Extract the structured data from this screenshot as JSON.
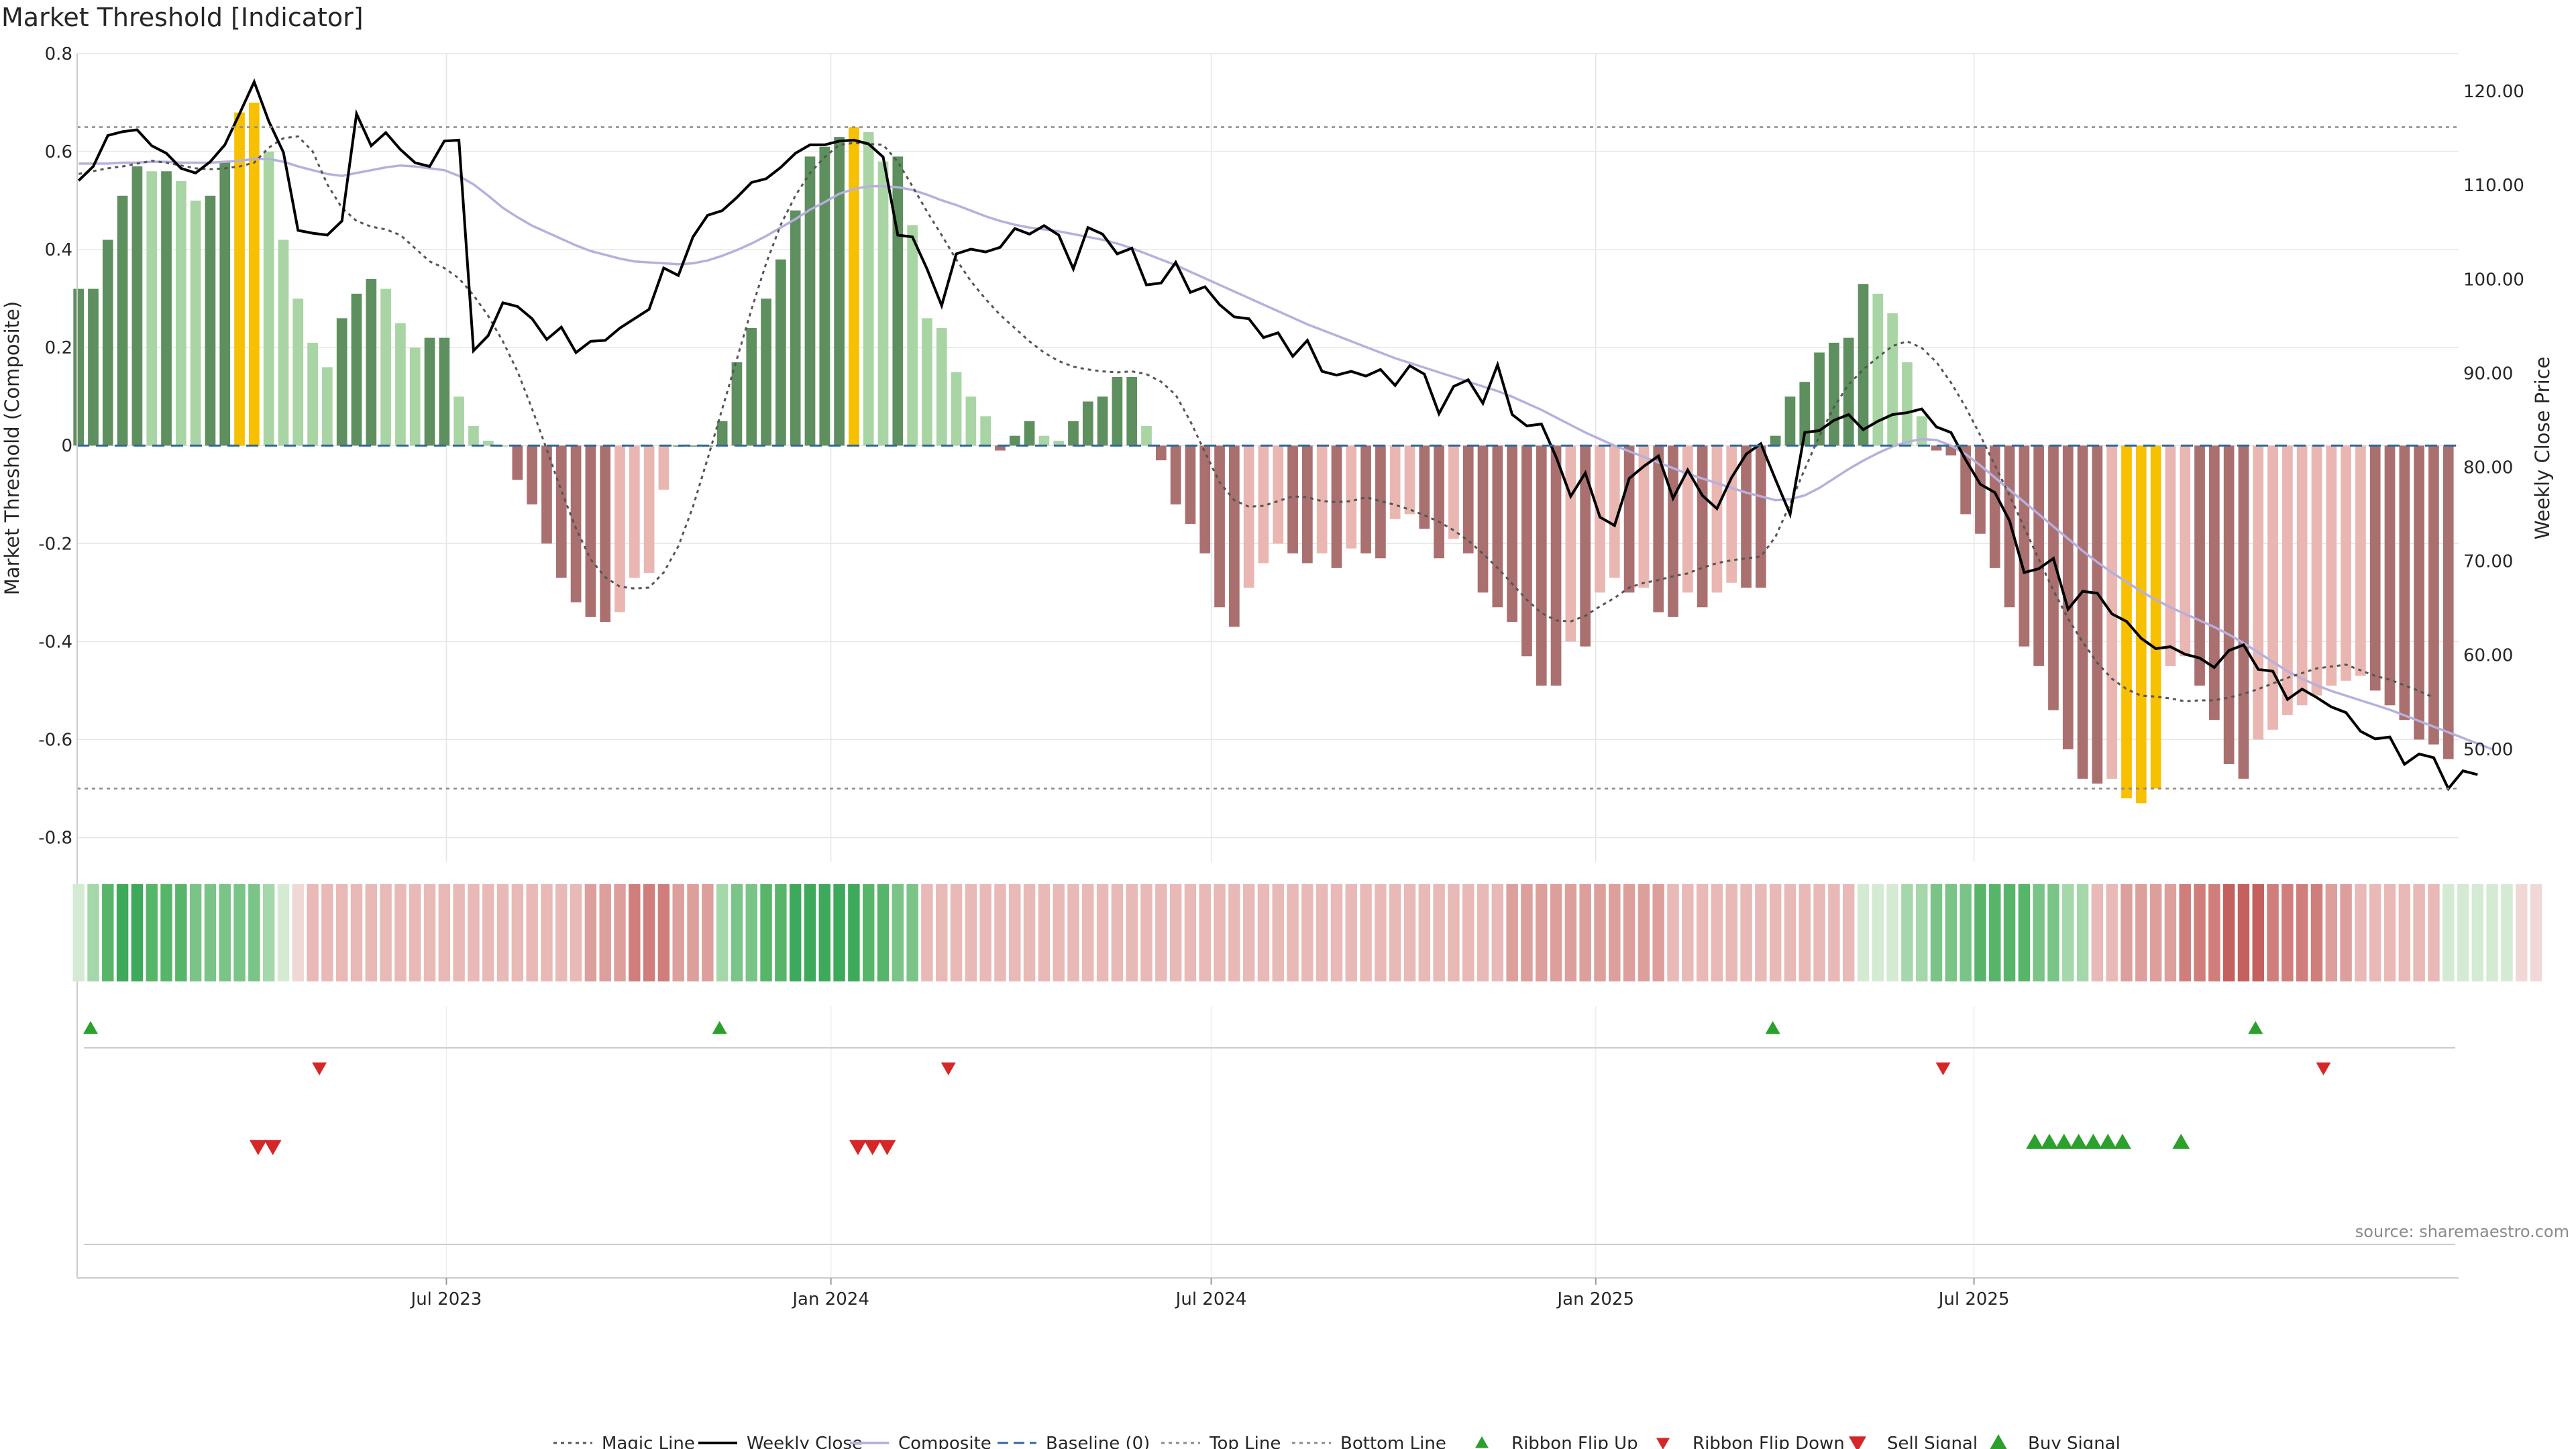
{
  "chart_data": {
    "type": "bar",
    "title": "Market Threshold [Indicator]",
    "ylabel": "Market Threshold (Composite)",
    "y2label": "Weekly Close Price",
    "ylim": [
      -0.85,
      0.8
    ],
    "y2lim": [
      38,
      124
    ],
    "yticks": [
      0.8,
      0.6,
      0.4,
      0.2,
      0,
      -0.2,
      -0.4,
      -0.6,
      -0.8
    ],
    "y2ticks": [
      120.0,
      110.0,
      100.0,
      90.0,
      80.0,
      70.0,
      60.0,
      50.0
    ],
    "x_start": "2023-01-06",
    "x_step_days": 7,
    "x_ticks": [
      {
        "label": "Jul 2023",
        "date": "2023-07-01"
      },
      {
        "label": "Jan 2024",
        "date": "2024-01-01"
      },
      {
        "label": "Jul 2024",
        "date": "2024-07-01"
      },
      {
        "label": "Jan 2025",
        "date": "2025-01-01"
      },
      {
        "label": "Jul 2025",
        "date": "2025-07-01"
      }
    ],
    "top_line": 0.65,
    "bottom_line": -0.7,
    "composite": [
      0.32,
      0.32,
      0.42,
      0.51,
      0.57,
      0.56,
      0.56,
      0.54,
      0.5,
      0.51,
      0.58,
      0.68,
      0.7,
      0.6,
      0.42,
      0.3,
      0.21,
      0.16,
      0.26,
      0.31,
      0.34,
      0.32,
      0.25,
      0.2,
      0.22,
      0.22,
      0.1,
      0.04,
      0.01,
      0.0,
      -0.07,
      -0.12,
      -0.2,
      -0.27,
      -0.32,
      -0.35,
      -0.36,
      -0.34,
      -0.27,
      -0.26,
      -0.09,
      0.0,
      0.0,
      0.0,
      0.05,
      0.17,
      0.24,
      0.3,
      0.38,
      0.48,
      0.59,
      0.61,
      0.63,
      0.65,
      0.64,
      0.58,
      0.59,
      0.45,
      0.26,
      0.24,
      0.15,
      0.1,
      0.06,
      -0.01,
      0.02,
      0.05,
      0.02,
      0.01,
      0.05,
      0.09,
      0.1,
      0.14,
      0.14,
      0.04,
      -0.03,
      -0.12,
      -0.16,
      -0.22,
      -0.33,
      -0.37,
      -0.29,
      -0.24,
      -0.2,
      -0.22,
      -0.24,
      -0.22,
      -0.25,
      -0.21,
      -0.22,
      -0.23,
      -0.15,
      -0.14,
      -0.17,
      -0.23,
      -0.19,
      -0.22,
      -0.3,
      -0.33,
      -0.36,
      -0.43,
      -0.49,
      -0.49,
      -0.4,
      -0.41,
      -0.3,
      -0.27,
      -0.3,
      -0.29,
      -0.34,
      -0.35,
      -0.3,
      -0.33,
      -0.3,
      -0.28,
      -0.29,
      -0.29,
      0.02,
      0.1,
      0.13,
      0.19,
      0.21,
      0.22,
      0.33,
      0.31,
      0.27,
      0.17,
      0.06,
      -0.01,
      -0.02,
      -0.14,
      -0.18,
      -0.25,
      -0.33,
      -0.41,
      -0.45,
      -0.54,
      -0.62,
      -0.68,
      -0.69,
      -0.68,
      -0.72,
      -0.73,
      -0.7,
      -0.45,
      -0.43,
      -0.49,
      -0.56,
      -0.65,
      -0.68,
      -0.6,
      -0.58,
      -0.55,
      -0.53,
      -0.51,
      -0.49,
      -0.48,
      -0.47,
      -0.5,
      -0.53,
      -0.56,
      -0.6,
      -0.61,
      -0.64
    ],
    "weekly_close": [
      110.5,
      112,
      115.3,
      115.7,
      115.9,
      114.2,
      113.4,
      111.8,
      111.3,
      112.5,
      114.3,
      117.6,
      121,
      116.8,
      113.5,
      105.2,
      104.9,
      104.7,
      106.2,
      117.6,
      114.2,
      115.6,
      113.8,
      112.4,
      112,
      114.7,
      114.8,
      92.4,
      94,
      97.5,
      97.1,
      95.8,
      93.6,
      94.9,
      92.2,
      93.4,
      93.5,
      94.8,
      95.8,
      96.8,
      101.2,
      100.4,
      104.5,
      106.8,
      107.3,
      108.7,
      110.3,
      110.7,
      111.9,
      113.4,
      114.3,
      114.3,
      114.7,
      114.8,
      114.4,
      113,
      104.7,
      104.5,
      101.1,
      97.2,
      102.7,
      103.2,
      102.9,
      103.4,
      105.4,
      104.8,
      105.7,
      104.7,
      101.1,
      105.5,
      104.8,
      102.7,
      103.3,
      99.4,
      99.6,
      101.8,
      98.6,
      99.2,
      97.3,
      96,
      95.8,
      93.8,
      94.3,
      91.8,
      93.5,
      90.2,
      89.8,
      90.2,
      89.7,
      90.4,
      88.7,
      90.8,
      89.9,
      85.7,
      88.6,
      89.3,
      86.8,
      90.9,
      85.6,
      84.4,
      84.6,
      81.1,
      76.9,
      79.4,
      74.7,
      73.8,
      78.8,
      80.1,
      81.2,
      76.7,
      79.7,
      77,
      75.6,
      78.9,
      81.4,
      82.5,
      78.7,
      75,
      83.7,
      83.9,
      85,
      85.6,
      84,
      84.9,
      85.6,
      85.8,
      86.2,
      84.3,
      83.7,
      80.8,
      78.2,
      77.3,
      74.3,
      68.8,
      69.2,
      70.3,
      64.9,
      66.8,
      66.6,
      64.4,
      63.6,
      61.8,
      60.7,
      60.9,
      60.1,
      59.7,
      58.7,
      60.5,
      61.1,
      58.5,
      58.3,
      55.3,
      56.4,
      55.5,
      54.5,
      53.9,
      51.9,
      51.1,
      51.3,
      48.4,
      49.5,
      49.1,
      45.8,
      47.7,
      47.3
    ],
    "magic_line": [
      111.2,
      111.5,
      111.8,
      112,
      112.3,
      112.6,
      112.4,
      112.1,
      111.8,
      111.7,
      111.8,
      112,
      112.4,
      114,
      115,
      115.2,
      113.6,
      110.1,
      107.6,
      106.2,
      105.6,
      105.3,
      104.7,
      103.3,
      101.9,
      101.2,
      100.1,
      98.3,
      96.1,
      93.4,
      90.2,
      86.2,
      81.9,
      77.5,
      73.5,
      70.2,
      68.3,
      67.3,
      67.1,
      67.2,
      68.8,
      71.6,
      75.8,
      80.9,
      86.2,
      91.5,
      96.8,
      101.7,
      105.8,
      108.9,
      111.3,
      113,
      114.3,
      114.5,
      114.4,
      114.3,
      112.5,
      109.9,
      107.2,
      104.7,
      102.1,
      99.8,
      97.9,
      96.2,
      94.8,
      93.4,
      92.2,
      91.3,
      90.7,
      90.4,
      90.2,
      90.1,
      90.2,
      89.9,
      89.1,
      87.7,
      84.9,
      81.6,
      78.4,
      76.5,
      75.8,
      75.9,
      76.4,
      76.9,
      76.8,
      76.4,
      76.3,
      76.4,
      76.8,
      76.4,
      76,
      75.5,
      74.9,
      74.2,
      73.3,
      72.2,
      70.8,
      69.3,
      67.6,
      65.9,
      64.5,
      63.7,
      63.6,
      64.2,
      65.2,
      66.1,
      67.2,
      67.7,
      68,
      68.4,
      68.7,
      69.3,
      69.8,
      70.1,
      70.3,
      70.5,
      72.6,
      76.1,
      79.8,
      83.3,
      86.4,
      88.8,
      90.4,
      91.7,
      92.9,
      93.4,
      92.7,
      91.2,
      89,
      86.4,
      83.4,
      80.2,
      77,
      73.6,
      70.2,
      66.9,
      63.9,
      61.4,
      59.2,
      57.5,
      56.4,
      55.7,
      55.6,
      55.4,
      55.1,
      55.2,
      55.2,
      55.5,
      55.9,
      56.4,
      57,
      57.6,
      58.1,
      58.6,
      58.8,
      59,
      58.4,
      57.8,
      57.4,
      56.8,
      56.2,
      55.5
    ],
    "composite_line": [
      112.3,
      112.3,
      112.3,
      112.4,
      112.4,
      112.5,
      112.5,
      112.4,
      112.4,
      112.4,
      112.5,
      112.6,
      112.8,
      112.8,
      112.5,
      112,
      111.6,
      111.2,
      111,
      111.3,
      111.6,
      111.9,
      112.1,
      112,
      111.8,
      111.6,
      111,
      110.1,
      108.9,
      107.6,
      106.6,
      105.7,
      105,
      104.3,
      103.6,
      103,
      102.6,
      102.2,
      101.9,
      101.8,
      101.7,
      101.6,
      101.7,
      102,
      102.5,
      103.1,
      103.8,
      104.6,
      105.5,
      106.4,
      107.4,
      108.2,
      109.1,
      109.6,
      109.9,
      109.9,
      109.8,
      109.5,
      109,
      108.4,
      107.9,
      107.3,
      106.7,
      106.2,
      105.8,
      105.5,
      105.3,
      105.1,
      104.8,
      104.5,
      104.2,
      103.8,
      103.3,
      102.7,
      102.1,
      101.5,
      100.8,
      100.1,
      99.4,
      98.7,
      98,
      97.3,
      96.6,
      95.9,
      95.2,
      94.6,
      94,
      93.4,
      92.8,
      92.2,
      91.6,
      91.1,
      90.6,
      90.1,
      89.6,
      89.1,
      88.6,
      88.1,
      87.5,
      86.8,
      86.1,
      85.3,
      84.5,
      83.7,
      83,
      82.3,
      81.7,
      81.1,
      80.5,
      79.9,
      79.3,
      78.8,
      78.3,
      77.8,
      77.3,
      76.9,
      76.5,
      76.6,
      77,
      77.8,
      78.8,
      79.8,
      80.7,
      81.5,
      82.2,
      82.7,
      83,
      82.9,
      82.3,
      81.4,
      80.2,
      78.9,
      77.6,
      76.3,
      75,
      73.7,
      72.4,
      71.1,
      69.9,
      68.8,
      67.8,
      66.8,
      65.9,
      65.1,
      64.4,
      63.7,
      63,
      62.2,
      61.3,
      60.3,
      59.3,
      58.3,
      57.5,
      56.8,
      56.2,
      55.7,
      55.2,
      54.7,
      54.2,
      53.6,
      53,
      52.4,
      51.8,
      51.2,
      50.6,
      50
    ],
    "ribbon_states": [
      1,
      2,
      4,
      5,
      5,
      4,
      4,
      4,
      3,
      3,
      3,
      3,
      3,
      2,
      1,
      -1,
      -2,
      -2,
      -2,
      -2,
      -2,
      -2,
      -2,
      -2,
      -2,
      -2,
      -2,
      -2,
      -2,
      -2,
      -2,
      -2,
      -2,
      -2,
      -2,
      -3,
      -3,
      -3,
      -4,
      -4,
      -4,
      -3,
      -3,
      -3,
      2,
      3,
      3,
      4,
      4,
      5,
      5,
      5,
      5,
      5,
      4,
      4,
      3,
      3,
      -2,
      -2,
      -2,
      -2,
      -2,
      -2,
      -2,
      -2,
      -2,
      -2,
      -2,
      -2,
      -2,
      -2,
      -2,
      -2,
      -2,
      -2,
      -2,
      -2,
      -2,
      -2,
      -2,
      -2,
      -2,
      -2,
      -2,
      -2,
      -2,
      -2,
      -2,
      -2,
      -2,
      -2,
      -2,
      -2,
      -2,
      -2,
      -2,
      -2,
      -3,
      -3,
      -3,
      -3,
      -3,
      -3,
      -3,
      -3,
      -3,
      -3,
      -3,
      -2,
      -2,
      -2,
      -2,
      -2,
      -2,
      -2,
      -2,
      -2,
      -2,
      -2,
      -2,
      -2,
      1,
      1,
      1,
      2,
      2,
      3,
      3,
      3,
      4,
      4,
      4,
      4,
      3,
      3,
      2,
      2,
      -2,
      -2,
      -3,
      -3,
      -3,
      -3,
      -4,
      -4,
      -4,
      -5,
      -5,
      -5,
      -4,
      -4,
      -4,
      -4,
      -3,
      -3,
      -2,
      -2,
      -2,
      -2,
      -2,
      -2,
      1,
      1,
      1,
      1,
      1,
      -1,
      -1
    ],
    "ribbon_flip_up": [
      1,
      44,
      116,
      149
    ],
    "ribbon_flip_down": [
      16,
      59,
      127,
      153
    ],
    "sell_signals": [
      12,
      13,
      53,
      54,
      55
    ],
    "buy_signals": [
      134,
      135,
      136,
      137,
      138,
      139,
      140,
      144
    ],
    "legend": [
      {
        "label": "Magic Line",
        "kind": "dotted",
        "color": "#555555"
      },
      {
        "label": "Weekly Close",
        "kind": "solid",
        "color": "#000000"
      },
      {
        "label": "Composite",
        "kind": "solid",
        "color": "#b6b0dd"
      },
      {
        "label": "Baseline (0)",
        "kind": "dashed",
        "color": "#2f6a9e"
      },
      {
        "label": "Top Line",
        "kind": "dotted",
        "color": "#8c8c8c"
      },
      {
        "label": "Bottom Line",
        "kind": "dotted",
        "color": "#8c8c8c"
      },
      {
        "label": "Ribbon Flip Up",
        "kind": "tri-up-small",
        "color": "#2ca02c"
      },
      {
        "label": "Ribbon Flip Down",
        "kind": "tri-down-small",
        "color": "#d62728"
      },
      {
        "label": "Sell Signal",
        "kind": "tri-down",
        "color": "#d62728"
      },
      {
        "label": "Buy Signal",
        "kind": "tri-up",
        "color": "#2ca02c"
      }
    ]
  },
  "colors": {
    "bull_strong": "#5e8f5e",
    "bull_weak": "#a9d5a4",
    "bear_strong": "#a9706f",
    "bear_weak": "#e9b6b1",
    "extreme": "#f7c000",
    "grid": "#e6e6e6",
    "axis": "#cccccc"
  },
  "source_text": "source: sharemaestro.com"
}
